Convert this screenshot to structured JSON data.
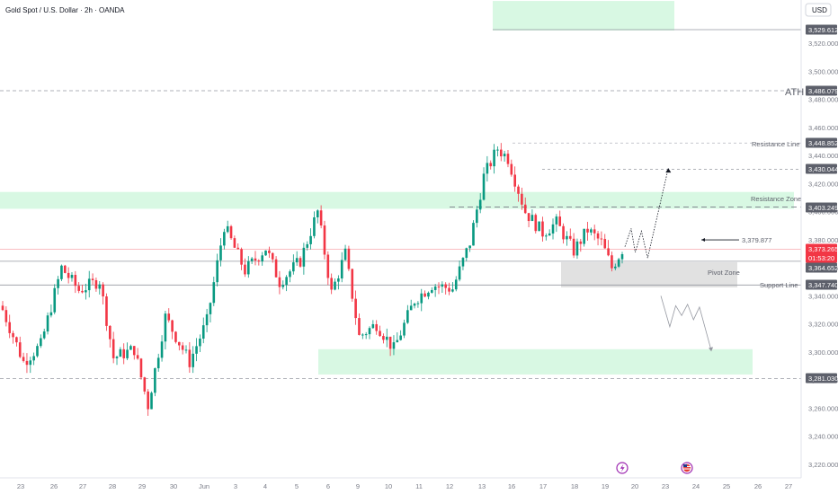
{
  "header": {
    "title": "Gold Spot / U.S. Dollar · 2h · OANDA",
    "currency": "USD"
  },
  "colors": {
    "up": "#089981",
    "down": "#f23645",
    "zone": "#d8f8e3",
    "pivot": "#dcdcdc",
    "axis_text": "#787b86",
    "line": "#9598a1"
  },
  "icons": [
    "lightning-icon",
    "us-flag-icon"
  ],
  "chart_data": {
    "type": "candlestick",
    "y_ticks": [
      3220,
      3240,
      3260,
      3280,
      3300,
      3320,
      3340,
      3360,
      3380,
      3400,
      3420,
      3440,
      3460,
      3480,
      3500,
      3520
    ],
    "x_ticks": [
      "23",
      "26",
      "27",
      "28",
      "29",
      "30",
      "Jun",
      "3",
      "4",
      "5",
      "6",
      "9",
      "10",
      "11",
      "12",
      "13",
      "16",
      "17",
      "18",
      "19",
      "20",
      "23",
      "24",
      "25",
      "26",
      "27"
    ],
    "price_tags": [
      {
        "value": "3,529.612",
        "color": "#5d606b"
      },
      {
        "value": "3,486.079",
        "color": "#5d606b"
      },
      {
        "value": "3,448.852",
        "color": "#5d606b"
      },
      {
        "value": "3,430.044",
        "color": "#5d606b"
      },
      {
        "value": "3,403.249",
        "color": "#5d606b"
      },
      {
        "value": "3,373.265",
        "color": "#f23645"
      },
      {
        "value": "01:53:20",
        "color": "#f23645"
      },
      {
        "value": "3,364.652",
        "color": "#5d606b"
      },
      {
        "value": "3,347.740",
        "color": "#5d606b"
      },
      {
        "value": "3,281.030",
        "color": "#5d606b"
      }
    ],
    "annotations": {
      "ath": "ATH",
      "resistance_line": "Resistance Line",
      "resistance_zone": "Resistance Zone",
      "pivot_zone": "Pivot Zone",
      "support_line": "Support Line",
      "target_value": "3,379.877"
    },
    "levels": {
      "top_tag": 3529.612,
      "ath": 3486.079,
      "resistance_line": 3448.852,
      "target_high": 3430.044,
      "resistance_zone": 3403.249,
      "current_price": 3373.265,
      "pivot_top": 3364.652,
      "support_line": 3347.74,
      "bottom_line": 3281.03,
      "target_mark": 3379.877
    },
    "zones": [
      {
        "name": "resistance-zone",
        "y1": 3402,
        "y2": 3414
      },
      {
        "name": "top-demand-zone",
        "y1": 3529,
        "y2": 3550
      },
      {
        "name": "support-demand-zone",
        "y1": 3284,
        "y2": 3302
      },
      {
        "name": "pivot-zone",
        "y1": 3346,
        "y2": 3364
      }
    ],
    "anchors": [
      {
        "i": 0,
        "v": 3330
      },
      {
        "i": 6,
        "v": 3293
      },
      {
        "i": 11,
        "v": 3305
      },
      {
        "i": 17,
        "v": 3360
      },
      {
        "i": 22,
        "v": 3344
      },
      {
        "i": 28,
        "v": 3351
      },
      {
        "i": 32,
        "v": 3296
      },
      {
        "i": 38,
        "v": 3302
      },
      {
        "i": 42,
        "v": 3262
      },
      {
        "i": 47,
        "v": 3325
      },
      {
        "i": 54,
        "v": 3293
      },
      {
        "i": 59,
        "v": 3322
      },
      {
        "i": 64,
        "v": 3390
      },
      {
        "i": 70,
        "v": 3358
      },
      {
        "i": 76,
        "v": 3374
      },
      {
        "i": 80,
        "v": 3350
      },
      {
        "i": 86,
        "v": 3365
      },
      {
        "i": 91,
        "v": 3400
      },
      {
        "i": 95,
        "v": 3342
      },
      {
        "i": 99,
        "v": 3370
      },
      {
        "i": 103,
        "v": 3311
      },
      {
        "i": 108,
        "v": 3320
      },
      {
        "i": 113,
        "v": 3302
      },
      {
        "i": 119,
        "v": 3337
      },
      {
        "i": 124,
        "v": 3348
      },
      {
        "i": 130,
        "v": 3345
      },
      {
        "i": 135,
        "v": 3378
      },
      {
        "i": 139,
        "v": 3425
      },
      {
        "i": 143,
        "v": 3445
      },
      {
        "i": 146,
        "v": 3438
      },
      {
        "i": 151,
        "v": 3400
      },
      {
        "i": 156,
        "v": 3385
      },
      {
        "i": 160,
        "v": 3392
      },
      {
        "i": 165,
        "v": 3372
      },
      {
        "i": 169,
        "v": 3387
      },
      {
        "i": 173,
        "v": 3378
      },
      {
        "i": 176,
        "v": 3360
      },
      {
        "i": 179,
        "v": 3373
      }
    ],
    "projection_up": [
      [
        3375,
        0
      ],
      [
        3388,
        3
      ],
      [
        3371,
        5
      ],
      [
        3386,
        8
      ],
      [
        3367,
        11
      ],
      [
        3431,
        21
      ]
    ],
    "projection_down": [
      [
        3340,
        0
      ],
      [
        3318,
        3
      ],
      [
        3333,
        5
      ],
      [
        3326,
        7
      ],
      [
        3334,
        9
      ],
      [
        3323,
        11
      ],
      [
        3332,
        13
      ],
      [
        3301,
        17
      ]
    ]
  }
}
